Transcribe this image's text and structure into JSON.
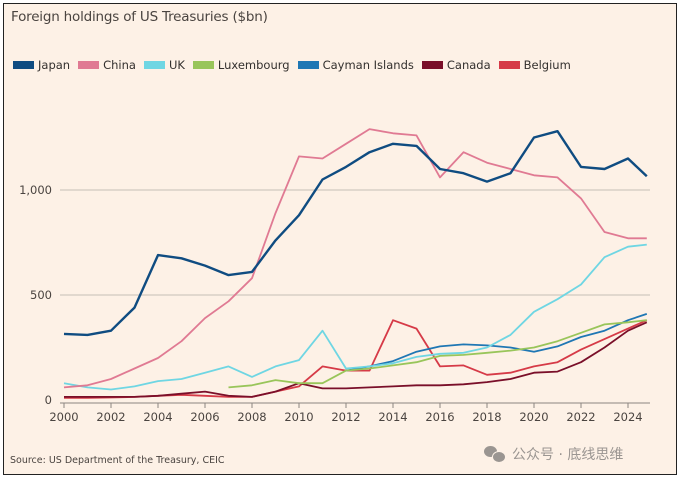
{
  "chart_data": {
    "type": "line",
    "title": "Foreign holdings of US Treasuries ($bn)",
    "xlabel": "",
    "ylabel": "",
    "xlim": [
      2000,
      2025
    ],
    "ylim": [
      0,
      1350
    ],
    "grid": "horizontal",
    "legend_position": "top-left",
    "x_ticks": [
      2000,
      2002,
      2004,
      2006,
      2008,
      2010,
      2012,
      2014,
      2016,
      2018,
      2020,
      2022,
      2024
    ],
    "x_tick_labels": [
      "2000",
      "2002",
      "2004",
      "2006",
      "2008",
      "2010",
      "2012",
      "2014",
      "2016",
      "2018",
      "2020",
      "2022",
      "2024"
    ],
    "y_ticks": [
      0,
      500,
      1000
    ],
    "y_tick_labels": [
      "0",
      "500",
      "1,000"
    ],
    "x": [
      2000,
      2001,
      2002,
      2003,
      2004,
      2005,
      2006,
      2007,
      2008,
      2009,
      2010,
      2011,
      2012,
      2013,
      2014,
      2015,
      2016,
      2017,
      2018,
      2019,
      2020,
      2021,
      2022,
      2023,
      2024,
      2024.8
    ],
    "series": [
      {
        "name": "Japan",
        "color": "#0f4c81",
        "values": [
          315,
          310,
          330,
          440,
          690,
          675,
          640,
          595,
          610,
          760,
          880,
          1050,
          1110,
          1180,
          1220,
          1210,
          1100,
          1080,
          1040,
          1080,
          1250,
          1280,
          1110,
          1100,
          1150,
          1065
        ]
      },
      {
        "name": "China",
        "color": "#e07a93",
        "values": [
          60,
          70,
          100,
          150,
          200,
          280,
          390,
          470,
          580,
          890,
          1160,
          1150,
          1220,
          1290,
          1270,
          1260,
          1060,
          1180,
          1130,
          1100,
          1070,
          1060,
          960,
          800,
          770,
          770
        ]
      },
      {
        "name": "UK",
        "color": "#6fd6e3",
        "values": [
          80,
          60,
          50,
          65,
          90,
          100,
          130,
          160,
          110,
          160,
          190,
          330,
          150,
          160,
          175,
          205,
          220,
          225,
          250,
          310,
          420,
          480,
          550,
          680,
          730,
          740
        ]
      },
      {
        "name": "Luxembourg",
        "color": "#99c55a",
        "values": [
          null,
          null,
          null,
          null,
          null,
          null,
          null,
          60,
          70,
          95,
          80,
          80,
          140,
          150,
          165,
          180,
          210,
          215,
          225,
          235,
          250,
          280,
          320,
          360,
          370,
          380
        ]
      },
      {
        "name": "Cayman Islands",
        "color": "#1f77b4",
        "values": [
          null,
          null,
          null,
          null,
          null,
          null,
          null,
          null,
          null,
          null,
          null,
          null,
          140,
          160,
          185,
          230,
          255,
          265,
          260,
          250,
          230,
          255,
          300,
          330,
          380,
          410
        ]
      },
      {
        "name": "Canada",
        "color": "#7a0f29",
        "values": [
          15,
          15,
          15,
          15,
          20,
          30,
          40,
          20,
          15,
          40,
          80,
          55,
          55,
          60,
          65,
          70,
          70,
          75,
          85,
          100,
          130,
          135,
          180,
          250,
          330,
          370
        ]
      },
      {
        "name": "Belgium",
        "color": "#d63a47",
        "values": [
          10,
          10,
          12,
          15,
          20,
          25,
          20,
          15,
          15,
          40,
          65,
          160,
          140,
          140,
          380,
          340,
          160,
          165,
          120,
          130,
          160,
          180,
          240,
          290,
          340,
          380
        ]
      }
    ]
  },
  "source": "Source: US Department of the Treasury, CEIC",
  "watermark": {
    "icon": "wechat-icon",
    "text": "公众号 · 底线思维"
  }
}
